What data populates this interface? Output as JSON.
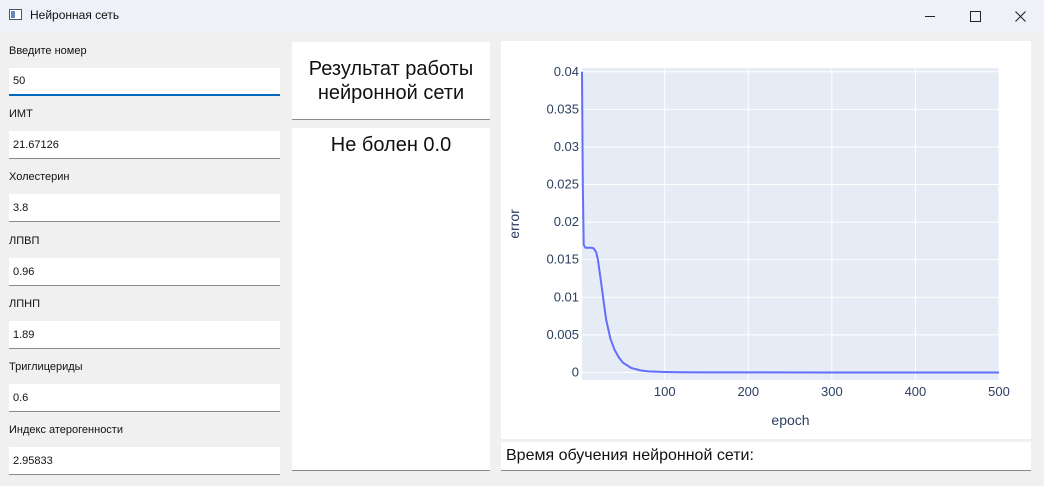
{
  "window": {
    "title": "Нейронная сеть"
  },
  "form": {
    "fields": [
      {
        "label": "Введите номер",
        "value": "50"
      },
      {
        "label": "ИМТ",
        "value": "21.67126"
      },
      {
        "label": "Холестерин",
        "value": "3.8"
      },
      {
        "label": "ЛПВП",
        "value": "0.96"
      },
      {
        "label": "ЛПНП",
        "value": "1.89"
      },
      {
        "label": "Триглицериды",
        "value": "0.6"
      },
      {
        "label": "Индекс атерогенности",
        "value": "2.95833"
      }
    ]
  },
  "result": {
    "title_line1": "Результат работы",
    "title_line2": "нейронной сети",
    "value": "Не болен 0.0"
  },
  "training": {
    "time_label": "Время обучения нейронной сети:"
  },
  "chart_data": {
    "type": "line",
    "xlabel": "epoch",
    "ylabel": "error",
    "xlim": [
      1,
      500
    ],
    "ylim": [
      -0.001,
      0.0405
    ],
    "x_ticks": [
      100,
      200,
      300,
      400,
      500
    ],
    "x_tick_labels": [
      "100",
      "200",
      "300",
      "400",
      "500"
    ],
    "y_ticks": [
      0,
      0.005,
      0.01,
      0.015,
      0.02,
      0.025,
      0.03,
      0.035,
      0.04
    ],
    "y_tick_labels": [
      "0",
      "0.005",
      "0.01",
      "0.015",
      "0.02",
      "0.025",
      "0.03",
      "0.035",
      "0.04"
    ],
    "grid": true,
    "series": [
      {
        "color": "#636efa",
        "x": [
          1,
          2,
          3,
          5,
          8,
          12,
          15,
          18,
          20,
          22,
          25,
          28,
          30,
          35,
          40,
          45,
          50,
          60,
          70,
          80,
          100,
          120,
          150,
          200,
          300,
          400,
          500
        ],
        "y": [
          0.04,
          0.025,
          0.017,
          0.0166,
          0.0166,
          0.0166,
          0.0165,
          0.016,
          0.015,
          0.0135,
          0.011,
          0.0085,
          0.007,
          0.0045,
          0.003,
          0.002,
          0.0013,
          0.0006,
          0.0003,
          0.00015,
          6e-05,
          3e-05,
          1e-05,
          5e-06,
          2e-06,
          1e-06,
          5e-07
        ]
      }
    ]
  }
}
